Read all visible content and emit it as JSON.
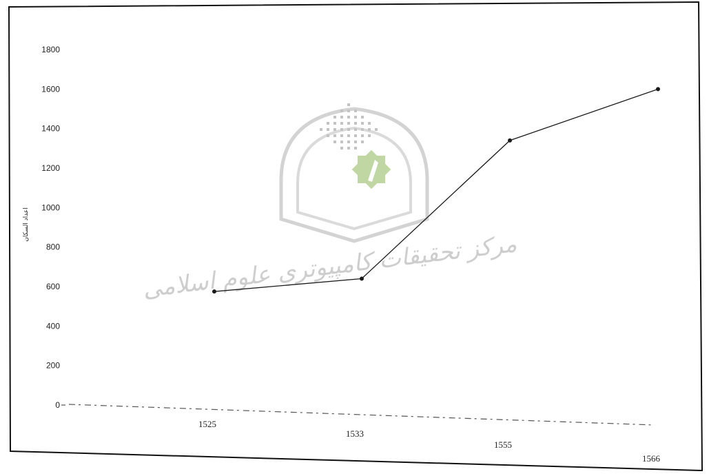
{
  "chart_data": {
    "type": "line",
    "title": "",
    "xlabel": "",
    "ylabel": "اعداد السكان",
    "categories": [
      "1525",
      "1533",
      "1555",
      "1566"
    ],
    "series": [
      {
        "values": [
          575,
          640,
          1340,
          1600
        ]
      }
    ],
    "ylim": [
      0,
      1800
    ],
    "y_ticks": [
      "0",
      "200",
      "400",
      "600",
      "800",
      "1000",
      "1200",
      "1400",
      "1600",
      "1800"
    ],
    "grid": false,
    "legend": "none",
    "colors": {
      "line": "#1a1a1a",
      "frame": "#111111",
      "watermark": "#c8c8c8",
      "watermark_star": "#b9d39a"
    }
  },
  "watermark": {
    "text": "مرکز تحقیقات کامپیوتری علوم اسلامی"
  }
}
